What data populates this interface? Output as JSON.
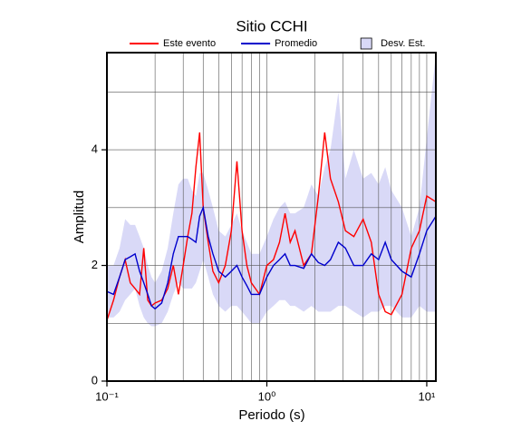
{
  "chart_data": {
    "type": "line",
    "title": "Sitio CCHI",
    "xlabel": "Periodo (s)",
    "ylabel": "Amplitud",
    "xscale": "log",
    "xlim": [
      0.1,
      11.4
    ],
    "ylim": [
      0,
      5.68
    ],
    "xticks": [
      {
        "value": 0.1,
        "label": "10⁻¹"
      },
      {
        "value": 1,
        "label": "10⁰"
      },
      {
        "value": 10,
        "label": "10¹"
      }
    ],
    "xminorticks": [
      0.2,
      0.3,
      0.4,
      0.5,
      0.6,
      0.7,
      0.8,
      0.9,
      2,
      3,
      4,
      5,
      6,
      7,
      8,
      9
    ],
    "yticks": [
      0,
      2,
      4
    ],
    "yminorticks": [
      1,
      3,
      5
    ],
    "grid": true,
    "legend": "top",
    "x": [
      0.1,
      0.11,
      0.12,
      0.13,
      0.14,
      0.15,
      0.16,
      0.17,
      0.18,
      0.19,
      0.2,
      0.22,
      0.24,
      0.26,
      0.28,
      0.3,
      0.32,
      0.34,
      0.36,
      0.38,
      0.4,
      0.43,
      0.46,
      0.5,
      0.55,
      0.6,
      0.65,
      0.7,
      0.75,
      0.8,
      0.9,
      1.0,
      1.1,
      1.2,
      1.3,
      1.4,
      1.5,
      1.7,
      1.9,
      2.1,
      2.3,
      2.5,
      2.8,
      3.1,
      3.5,
      4,
      4.5,
      5,
      5.5,
      6,
      7,
      8,
      9,
      10,
      11.4
    ],
    "band": {
      "name": "Desv. Est.",
      "color": "#d9d9f7",
      "upper": [
        2.0,
        2.0,
        2.3,
        2.8,
        2.7,
        2.7,
        2.5,
        2.3,
        2.0,
        1.8,
        1.7,
        1.9,
        2.3,
        2.9,
        3.4,
        3.5,
        3.5,
        3.3,
        3.2,
        3.6,
        3.6,
        3.3,
        3.0,
        2.6,
        2.5,
        2.7,
        2.9,
        2.6,
        2.4,
        2.2,
        2.2,
        2.5,
        2.8,
        3.0,
        3.1,
        2.9,
        2.9,
        3.0,
        3.4,
        3.2,
        3.7,
        4.0,
        5.0,
        3.5,
        4.0,
        3.5,
        3.6,
        3.4,
        3.7,
        3.3,
        3.0,
        2.5,
        3.0,
        4.2,
        5.65
      ],
      "lower": [
        1.1,
        1.1,
        1.2,
        1.4,
        1.5,
        1.6,
        1.3,
        1.1,
        1.0,
        0.95,
        0.95,
        1.0,
        1.2,
        1.5,
        1.7,
        1.6,
        1.6,
        1.6,
        1.7,
        1.9,
        2.1,
        1.8,
        1.5,
        1.3,
        1.2,
        1.3,
        1.3,
        1.2,
        1.1,
        1.0,
        1.0,
        1.2,
        1.3,
        1.4,
        1.4,
        1.3,
        1.3,
        1.2,
        1.3,
        1.2,
        1.2,
        1.2,
        1.3,
        1.3,
        1.2,
        1.1,
        1.2,
        1.2,
        1.3,
        1.3,
        1.1,
        1.1,
        1.3,
        1.2,
        1.2
      ]
    },
    "series": [
      {
        "name": "Este evento",
        "color": "#ff0000",
        "values": [
          1.05,
          1.4,
          1.8,
          2.1,
          1.7,
          1.6,
          1.5,
          2.3,
          1.4,
          1.3,
          1.35,
          1.4,
          1.6,
          2.0,
          1.5,
          2.0,
          2.5,
          2.9,
          3.7,
          4.3,
          3.0,
          2.4,
          1.9,
          1.7,
          2.0,
          2.6,
          3.8,
          2.6,
          2.0,
          1.7,
          1.5,
          2.0,
          2.1,
          2.4,
          2.9,
          2.4,
          2.6,
          2.0,
          2.2,
          3.2,
          4.3,
          3.5,
          3.1,
          2.6,
          2.5,
          2.8,
          2.4,
          1.5,
          1.2,
          1.15,
          1.5,
          2.3,
          2.6,
          3.2,
          3.1
        ]
      },
      {
        "name": "Promedio",
        "color": "#0000cc",
        "values": [
          1.55,
          1.5,
          1.8,
          2.1,
          2.15,
          2.2,
          1.9,
          1.7,
          1.5,
          1.3,
          1.25,
          1.35,
          1.7,
          2.2,
          2.5,
          2.5,
          2.5,
          2.45,
          2.4,
          2.85,
          3.0,
          2.5,
          2.2,
          1.9,
          1.8,
          1.9,
          2.0,
          1.8,
          1.65,
          1.5,
          1.5,
          1.8,
          2.0,
          2.1,
          2.2,
          2.0,
          2.0,
          1.95,
          2.2,
          2.05,
          2.0,
          2.1,
          2.4,
          2.3,
          2.0,
          2.0,
          2.2,
          2.1,
          2.4,
          2.1,
          1.9,
          1.8,
          2.2,
          2.6,
          2.85
        ]
      }
    ]
  }
}
